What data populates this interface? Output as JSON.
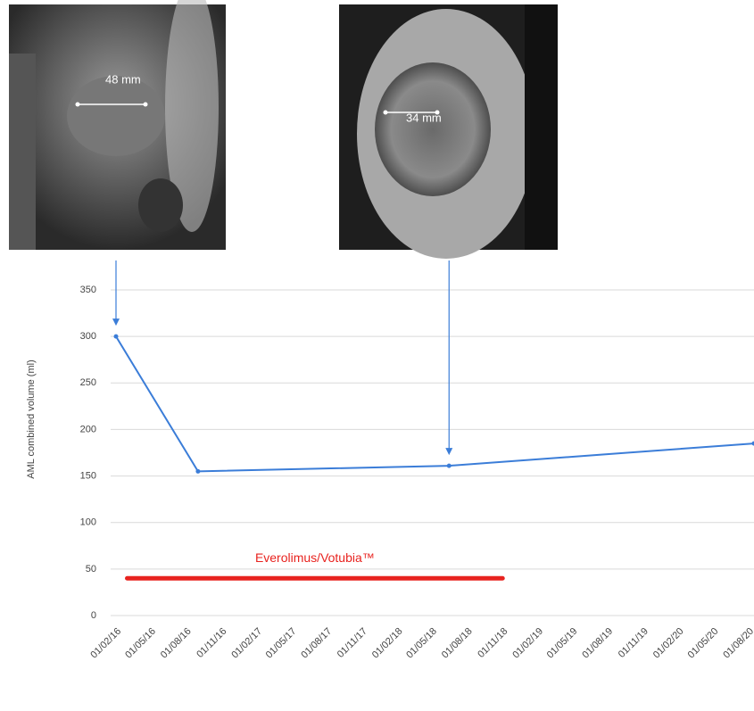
{
  "chart_data": {
    "type": "line",
    "y_axis_label": "AML combined volume (ml)",
    "ylim": [
      0,
      350
    ],
    "yticks": [
      0,
      50,
      100,
      150,
      200,
      250,
      300,
      350
    ],
    "grid": true,
    "xlim": [
      "01/02/16",
      "15/08/20"
    ],
    "xticks": [
      "01/02/16",
      "01/05/16",
      "01/08/16",
      "01/11/16",
      "01/02/17",
      "01/05/17",
      "01/08/17",
      "01/11/17",
      "01/02/18",
      "01/05/18",
      "01/08/18",
      "01/11/18",
      "01/02/19",
      "01/05/19",
      "01/08/19",
      "01/11/19",
      "01/02/20",
      "01/05/20",
      "01/08/20"
    ],
    "series": [
      {
        "color": "#3b7dd8",
        "x": [
          "01/02/16",
          "01/09/16",
          "15/06/18",
          "15/08/20"
        ],
        "values": [
          300,
          155,
          161,
          185
        ]
      }
    ],
    "treatment": {
      "label": "Everolimus/Votubia™",
      "start": "01/03/16",
      "end": "01/11/18",
      "value": 40,
      "color": "#e8231f"
    },
    "images": [
      {
        "measurement": "48 mm"
      },
      {
        "measurement": "34 mm"
      }
    ]
  }
}
